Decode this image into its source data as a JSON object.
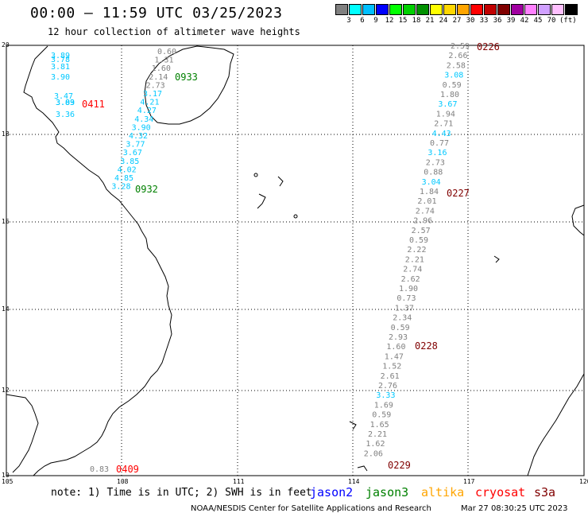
{
  "header": {
    "title": "00:00 – 11:59 UTC 03/25/2023",
    "subtitle": "12 hour collection of altimeter wave heights"
  },
  "legend": {
    "colors": [
      "#808080",
      "#00ffff",
      "#00bfff",
      "#0000ff",
      "#00ff00",
      "#00d000",
      "#009000",
      "#ffff00",
      "#ffd700",
      "#ffa500",
      "#ff0000",
      "#c00000",
      "#800000",
      "#a000a0",
      "#ff80ff",
      "#d0a0ff",
      "#ffc0ff",
      "#000000"
    ],
    "labels": [
      "3",
      "6",
      "9",
      "12",
      "15",
      "18",
      "21",
      "24",
      "27",
      "30",
      "33",
      "36",
      "39",
      "42",
      "45",
      "70"
    ],
    "unit": "(ft)"
  },
  "axes": {
    "lat_labels": [
      "20",
      "18",
      "16",
      "14",
      "12",
      "10"
    ],
    "lon_labels": [
      "105",
      "108",
      "111",
      "114",
      "117",
      "120"
    ]
  },
  "passes": [
    {
      "label": "0411",
      "color": "#ff0000"
    },
    {
      "label": "0409",
      "color": "#ff0000"
    },
    {
      "label": "0933",
      "color": "#008000"
    },
    {
      "label": "0932",
      "color": "#008000"
    },
    {
      "label": "0226",
      "color": "#800000"
    },
    {
      "label": "0227",
      "color": "#800000"
    },
    {
      "label": "0228",
      "color": "#800000"
    },
    {
      "label": "0229",
      "color": "#800000"
    }
  ],
  "tracks": {
    "west_cyan": [
      "3.89",
      "3.78",
      "3.81",
      "3.90",
      "3.47",
      "3.03",
      "3.89",
      "3.36"
    ],
    "cross": [
      "0.60",
      "1.31",
      "1.60",
      "2.14",
      "2.73",
      "3.17",
      "4.21",
      "4.27",
      "4.34",
      "3.90",
      "4.32",
      "3.77",
      "3.67",
      "3.85",
      "4.02",
      "4.85",
      "3.28"
    ],
    "east": [
      "2.59",
      "2.66",
      "2.58",
      "3.08",
      "0.59",
      "1.80",
      "3.67",
      "1.94",
      "2.71",
      "4.43",
      "0.77",
      "3.16",
      "2.73",
      "0.88",
      "3.04",
      "1.84",
      "2.01",
      "2.74",
      "2.96",
      "2.57",
      "0.59",
      "2.22",
      "2.21",
      "2.74",
      "2.62",
      "1.90",
      "0.73",
      "1.37",
      "2.34",
      "0.59",
      "2.93",
      "1.60",
      "1.47",
      "1.52",
      "2.61",
      "2.76",
      "3.33",
      "1.69",
      "0.59",
      "1.65",
      "2.21",
      "1.62",
      "2.06"
    ],
    "south_gray": "0.83"
  },
  "notes": {
    "prefix": "note:  1) Time is in UTC;  2) SWH is in feet",
    "sat1": "jason2",
    "sat2": "jason3",
    "sat3": "altika",
    "sat4": "cryosat",
    "sat5": "s3a",
    "footer": "NOAA/NESDIS Center for Satellite Applications and Research",
    "timestamp": "Mar 27 08:30:25 UTC 2023"
  }
}
